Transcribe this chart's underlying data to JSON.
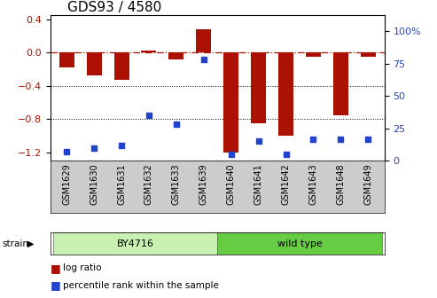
{
  "title": "GDS93 / 4580",
  "samples": [
    "GSM1629",
    "GSM1630",
    "GSM1631",
    "GSM1632",
    "GSM1633",
    "GSM1639",
    "GSM1640",
    "GSM1641",
    "GSM1642",
    "GSM1643",
    "GSM1648",
    "GSM1649"
  ],
  "log_ratio": [
    -0.18,
    -0.28,
    -0.33,
    0.02,
    -0.08,
    0.28,
    -1.2,
    -0.85,
    -1.0,
    -0.05,
    -0.75,
    -0.05
  ],
  "percentile_rank": [
    7,
    10,
    12,
    35,
    28,
    78,
    5,
    15,
    5,
    17,
    17,
    17
  ],
  "strain_groups": [
    {
      "label": "BY4716",
      "start": 0,
      "end": 5,
      "color": "#c8f0b0"
    },
    {
      "label": "wild type",
      "start": 6,
      "end": 11,
      "color": "#66cc44"
    }
  ],
  "bar_color": "#aa1100",
  "dot_color": "#2244cc",
  "ylim_left": [
    -1.3,
    0.45
  ],
  "ylim_right": [
    0,
    112.5
  ],
  "yticks_left": [
    -1.2,
    -0.8,
    -0.4,
    0.0,
    0.4
  ],
  "yticks_right": [
    0,
    25,
    50,
    75,
    100
  ],
  "hline_y": 0.0,
  "dotted_lines": [
    -0.4,
    -0.8
  ],
  "background_color": "#ffffff",
  "plot_bg": "#ffffff",
  "title_fontsize": 11,
  "tick_label_fontsize": 7,
  "legend_items": [
    {
      "label": "log ratio",
      "color": "#aa1100"
    },
    {
      "label": "percentile rank within the sample",
      "color": "#2244cc"
    }
  ],
  "xtick_bg": "#cccccc",
  "strain_label": "strain"
}
